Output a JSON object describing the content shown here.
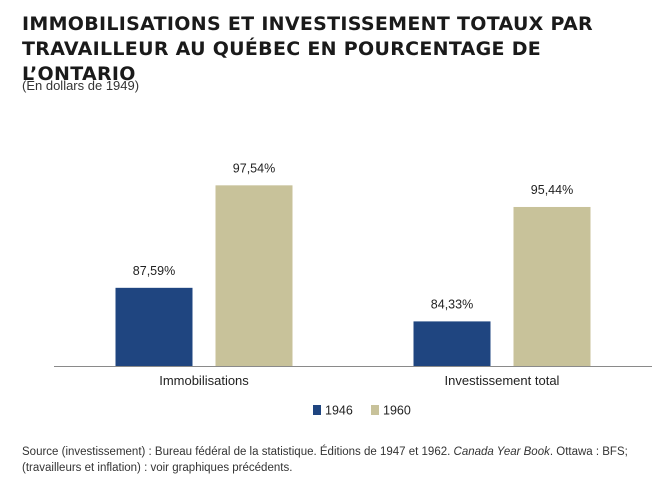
{
  "header": {
    "title_line1": "IMMOBILISATIONS ET INVESTISSEMENT TOTAUX PAR",
    "title_line2": "TRAVAILLEUR AU QUÉBEC EN POURCENTAGE DE L’ONTARIO",
    "subtitle": "(En dollars de 1949)"
  },
  "chart_data": {
    "type": "bar",
    "title": "IMMOBILISATIONS ET INVESTISSEMENT TOTAUX PAR TRAVAILLEUR AU QUÉBEC EN POURCENTAGE DE L’ONTARIO",
    "subtitle": "(En dollars de 1949)",
    "categories": [
      "Immobilisations",
      "Investissement total"
    ],
    "series": [
      {
        "name": "1946",
        "color": "#1f4580",
        "values": [
          87.59,
          84.33
        ],
        "labels": [
          "87,59%",
          "84,33%"
        ]
      },
      {
        "name": "1960",
        "color": "#c8c29a",
        "values": [
          97.54,
          95.44
        ],
        "labels": [
          "97,54%",
          "95,44%"
        ]
      }
    ],
    "xlabel": "",
    "ylabel": "",
    "ylim": [
      80,
      100
    ],
    "grid": false,
    "legend": "bottom-center"
  },
  "footer": {
    "source_part1": "Source (investissement) : Bureau fédéral de la statistique. Éditions de 1947 et 1962. ",
    "source_italic": "Canada Year Book",
    "source_part2": ". Ottawa : BFS; (travailleurs et inflation) : voir graphiques précédents."
  }
}
